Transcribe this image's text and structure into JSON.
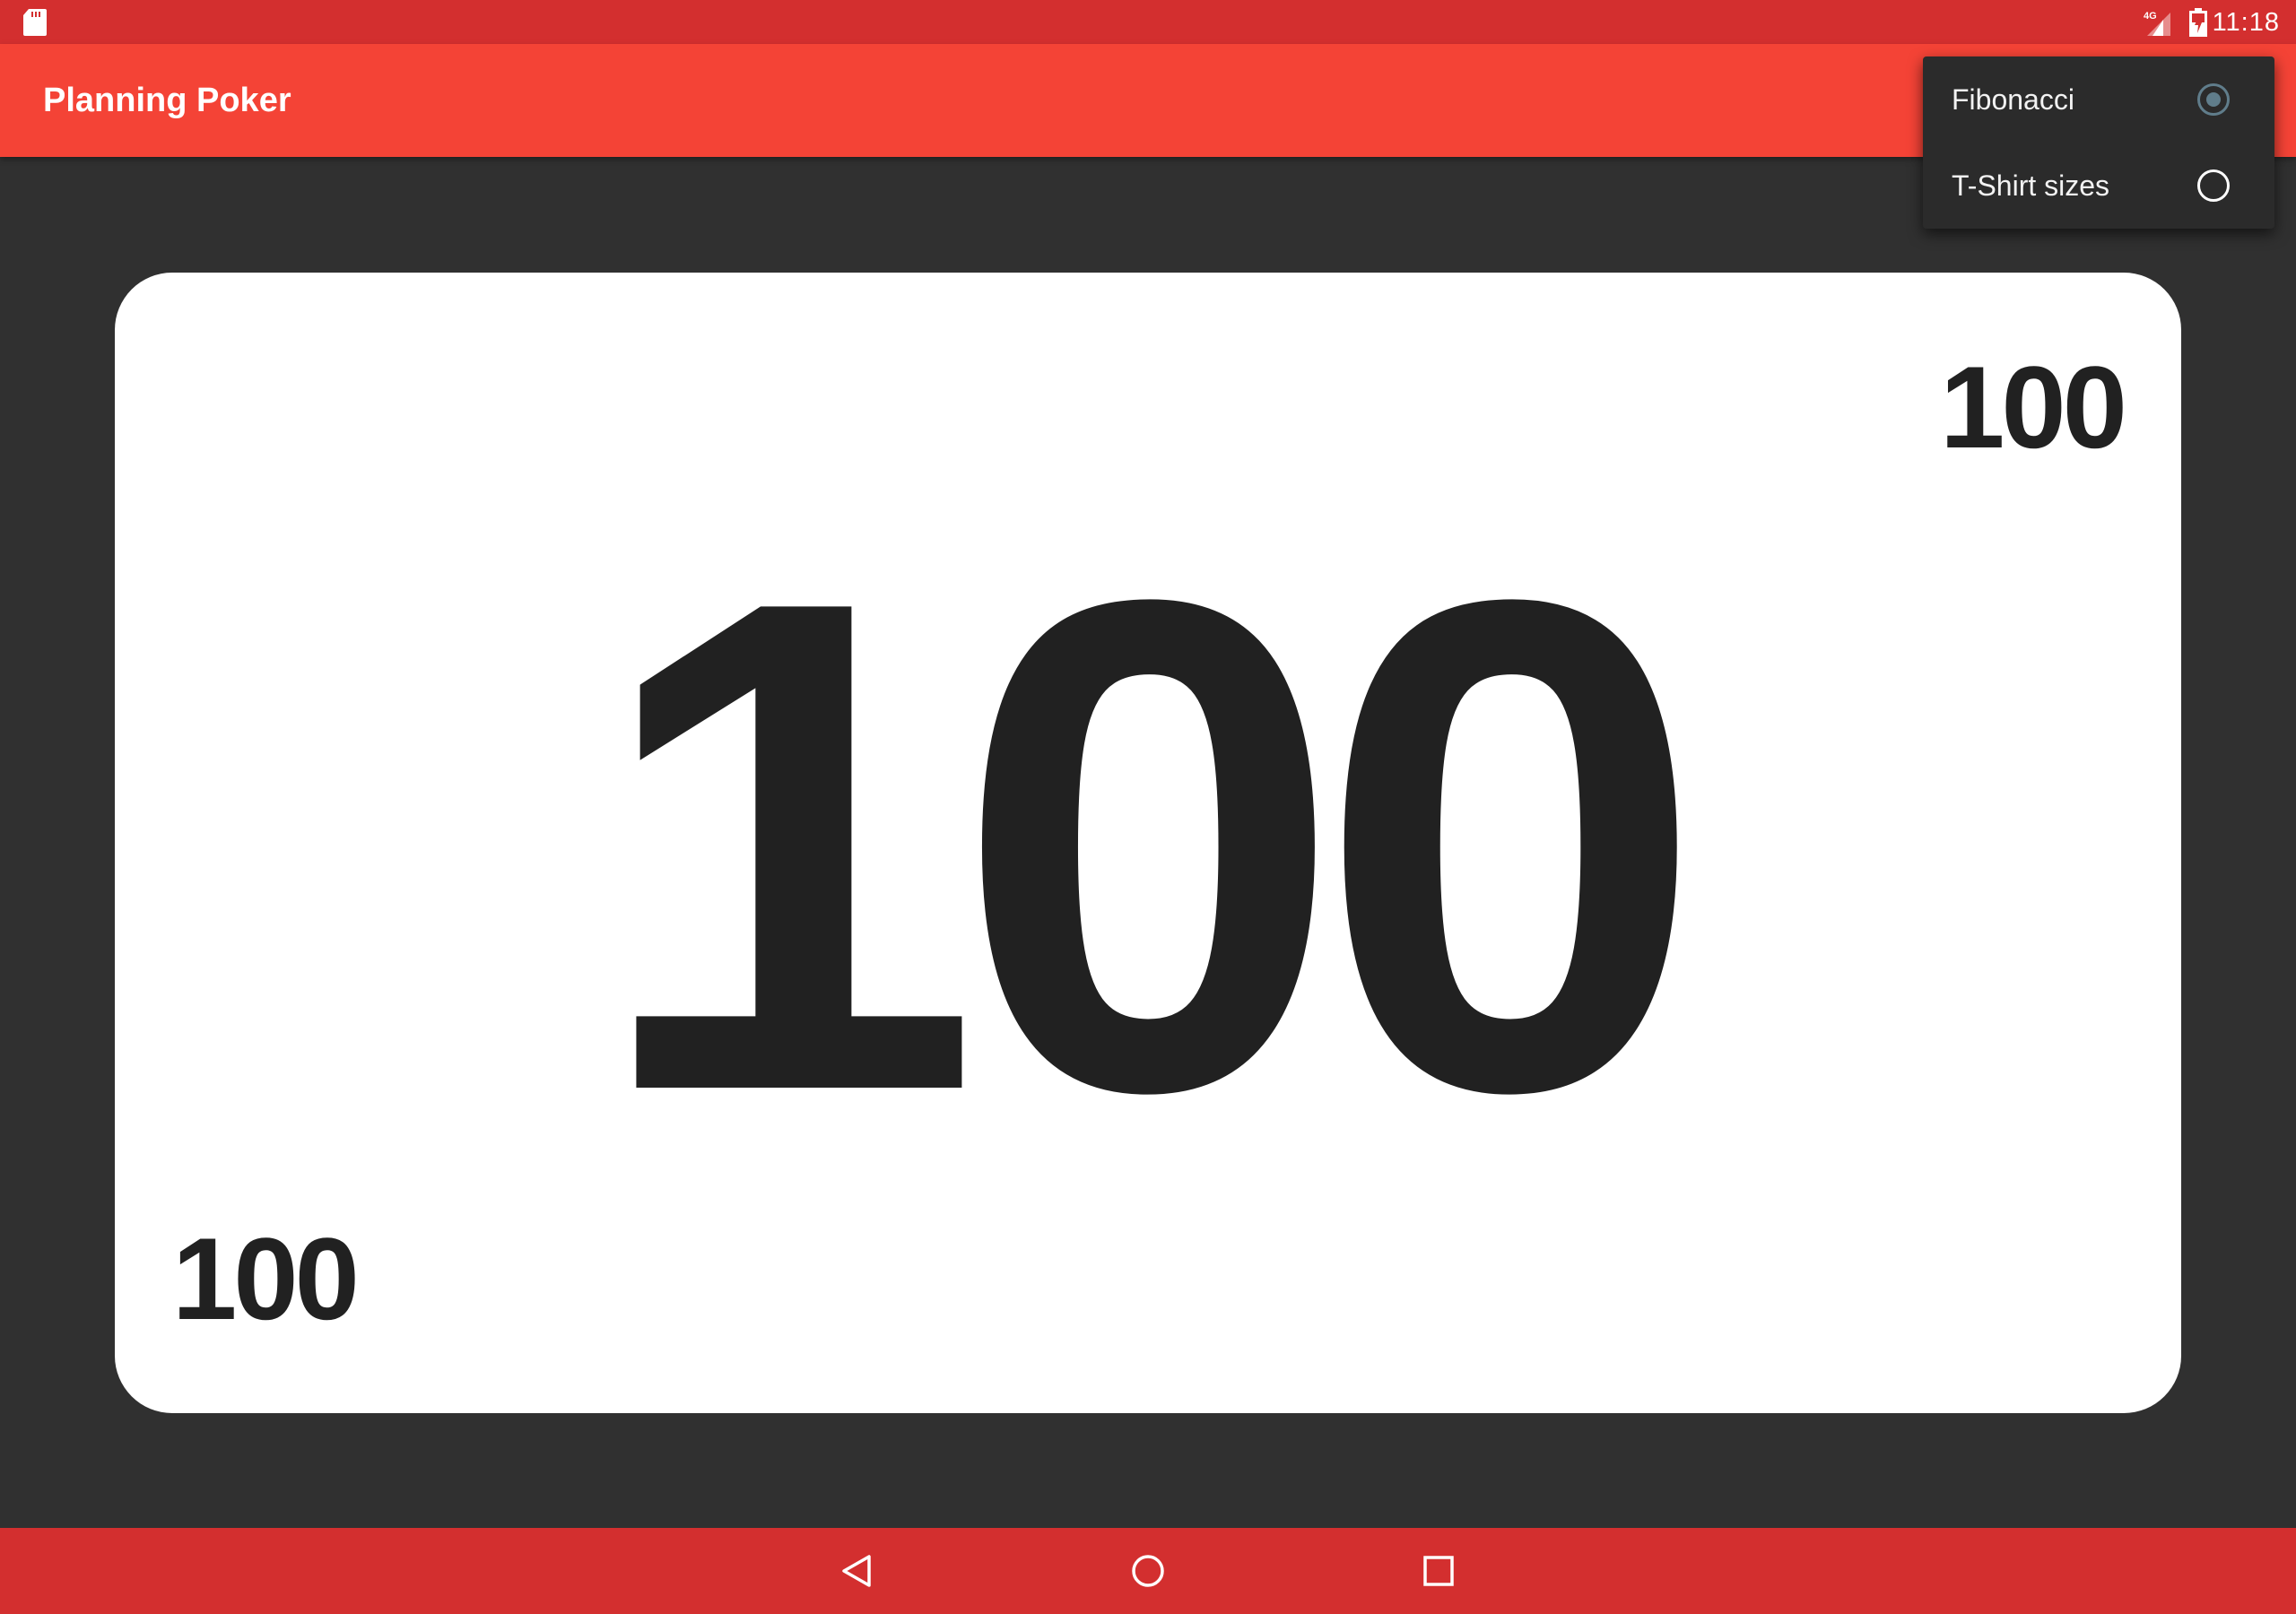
{
  "status_bar": {
    "time": "11:18",
    "network_label": "4G",
    "icons": [
      "sd-card-icon",
      "signal-icon",
      "battery-icon"
    ]
  },
  "app_bar": {
    "title": "Planning Poker"
  },
  "menu": {
    "items": [
      {
        "label": "Fibonacci",
        "selected": true
      },
      {
        "label": "T-Shirt sizes",
        "selected": false
      }
    ]
  },
  "card": {
    "value": "100",
    "corner_top": "100",
    "corner_bottom": "100"
  },
  "nav_bar": {
    "buttons": [
      "back-icon",
      "home-icon",
      "recents-icon"
    ]
  },
  "colors": {
    "status_bar": "#d32f2f",
    "app_bar": "#f44336",
    "background": "#303030",
    "card": "#ffffff",
    "card_text": "#212121",
    "menu_background": "#2b2b2b",
    "radio_accent": "#607d8b"
  }
}
